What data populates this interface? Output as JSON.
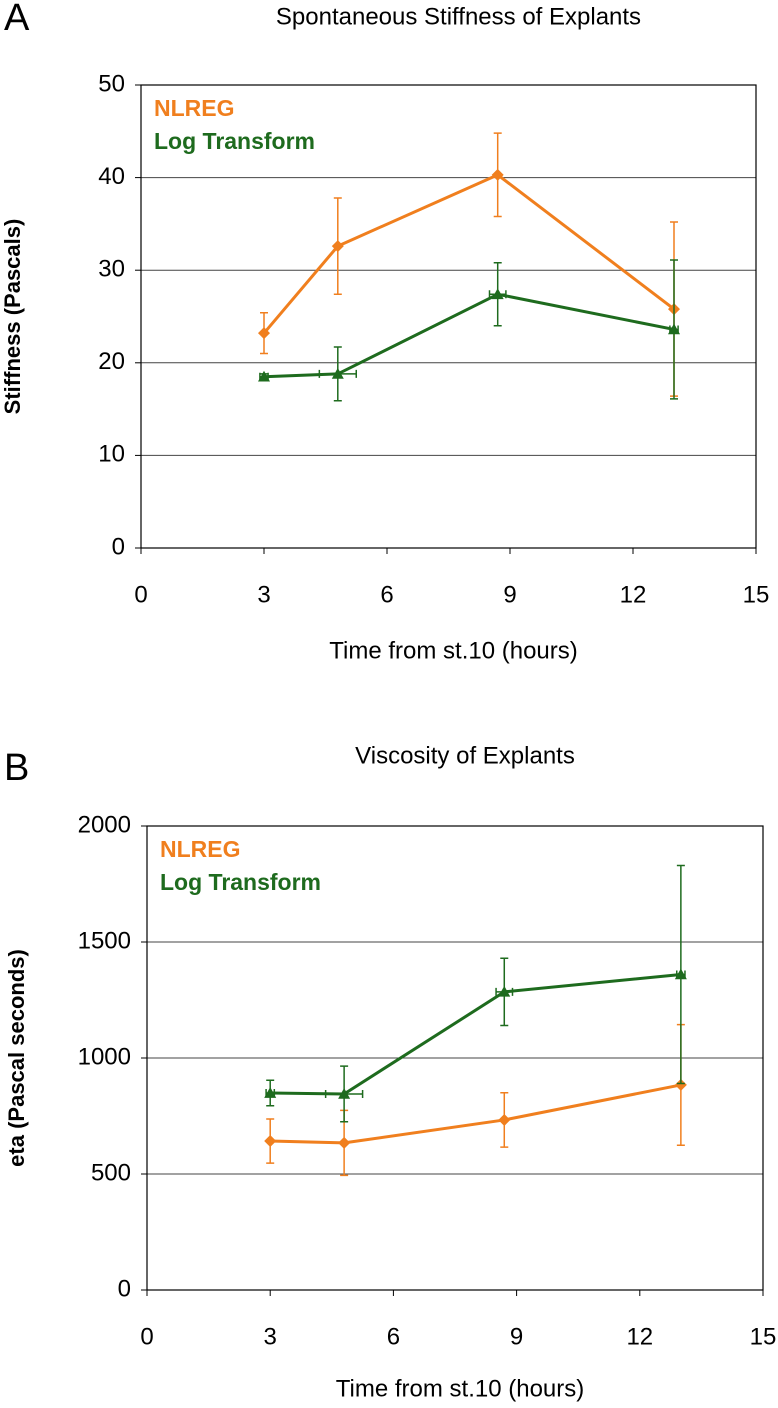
{
  "chart_data": [
    {
      "type": "line",
      "panel_label": "A",
      "title": "Spontaneous Stiffness of Explants",
      "x_label": "Time from st.10 (hours)",
      "y_label": "Stiffness (Pascals)",
      "xlim": [
        0,
        15
      ],
      "xticks": [
        0,
        3,
        6,
        9,
        12,
        15
      ],
      "ylim": [
        0,
        50
      ],
      "yticks": [
        0,
        10,
        20,
        30,
        40,
        50
      ],
      "grid": true,
      "legend": "upper left",
      "series": [
        {
          "name": "NLREG",
          "color": "#f07f1e",
          "marker": "diamond",
          "x": [
            3.0,
            4.8,
            8.7,
            13.0
          ],
          "values": [
            23.2,
            32.6,
            40.3,
            25.8
          ],
          "errors": [
            2.2,
            5.2,
            4.5,
            9.4
          ],
          "x_errors": [
            0,
            0,
            0,
            0
          ]
        },
        {
          "name": "Log Transform",
          "color": "#1e6b1e",
          "marker": "triangle",
          "x": [
            3.0,
            4.8,
            8.7,
            13.0
          ],
          "values": [
            18.5,
            18.8,
            27.4,
            23.6
          ],
          "errors": [
            0.3,
            2.9,
            3.4,
            7.5
          ],
          "x_errors": [
            0.1,
            0.45,
            0.2,
            0.1
          ]
        }
      ]
    },
    {
      "type": "line",
      "panel_label": "B",
      "title": "Viscosity of Explants",
      "x_label": "Time from st.10 (hours)",
      "y_label": "eta (Pascal seconds)",
      "xlim": [
        0,
        15
      ],
      "xticks": [
        0,
        3,
        6,
        9,
        12,
        15
      ],
      "ylim": [
        0,
        2000
      ],
      "yticks": [
        0,
        500,
        1000,
        1500,
        2000
      ],
      "grid": true,
      "legend": "upper left",
      "series": [
        {
          "name": "NLREG",
          "color": "#f07f1e",
          "marker": "diamond",
          "x": [
            3.0,
            4.8,
            8.7,
            13.0
          ],
          "values": [
            642,
            634,
            733,
            884
          ],
          "errors": [
            95,
            140,
            117,
            260
          ],
          "x_errors": [
            0,
            0,
            0,
            0
          ]
        },
        {
          "name": "Log Transform",
          "color": "#1e6b1e",
          "marker": "triangle",
          "x": [
            3.0,
            4.8,
            8.7,
            13.0
          ],
          "values": [
            849,
            845,
            1285,
            1360
          ],
          "errors": [
            55,
            120,
            145,
            470
          ],
          "x_errors": [
            0.1,
            0.45,
            0.2,
            0.1
          ]
        }
      ]
    }
  ]
}
